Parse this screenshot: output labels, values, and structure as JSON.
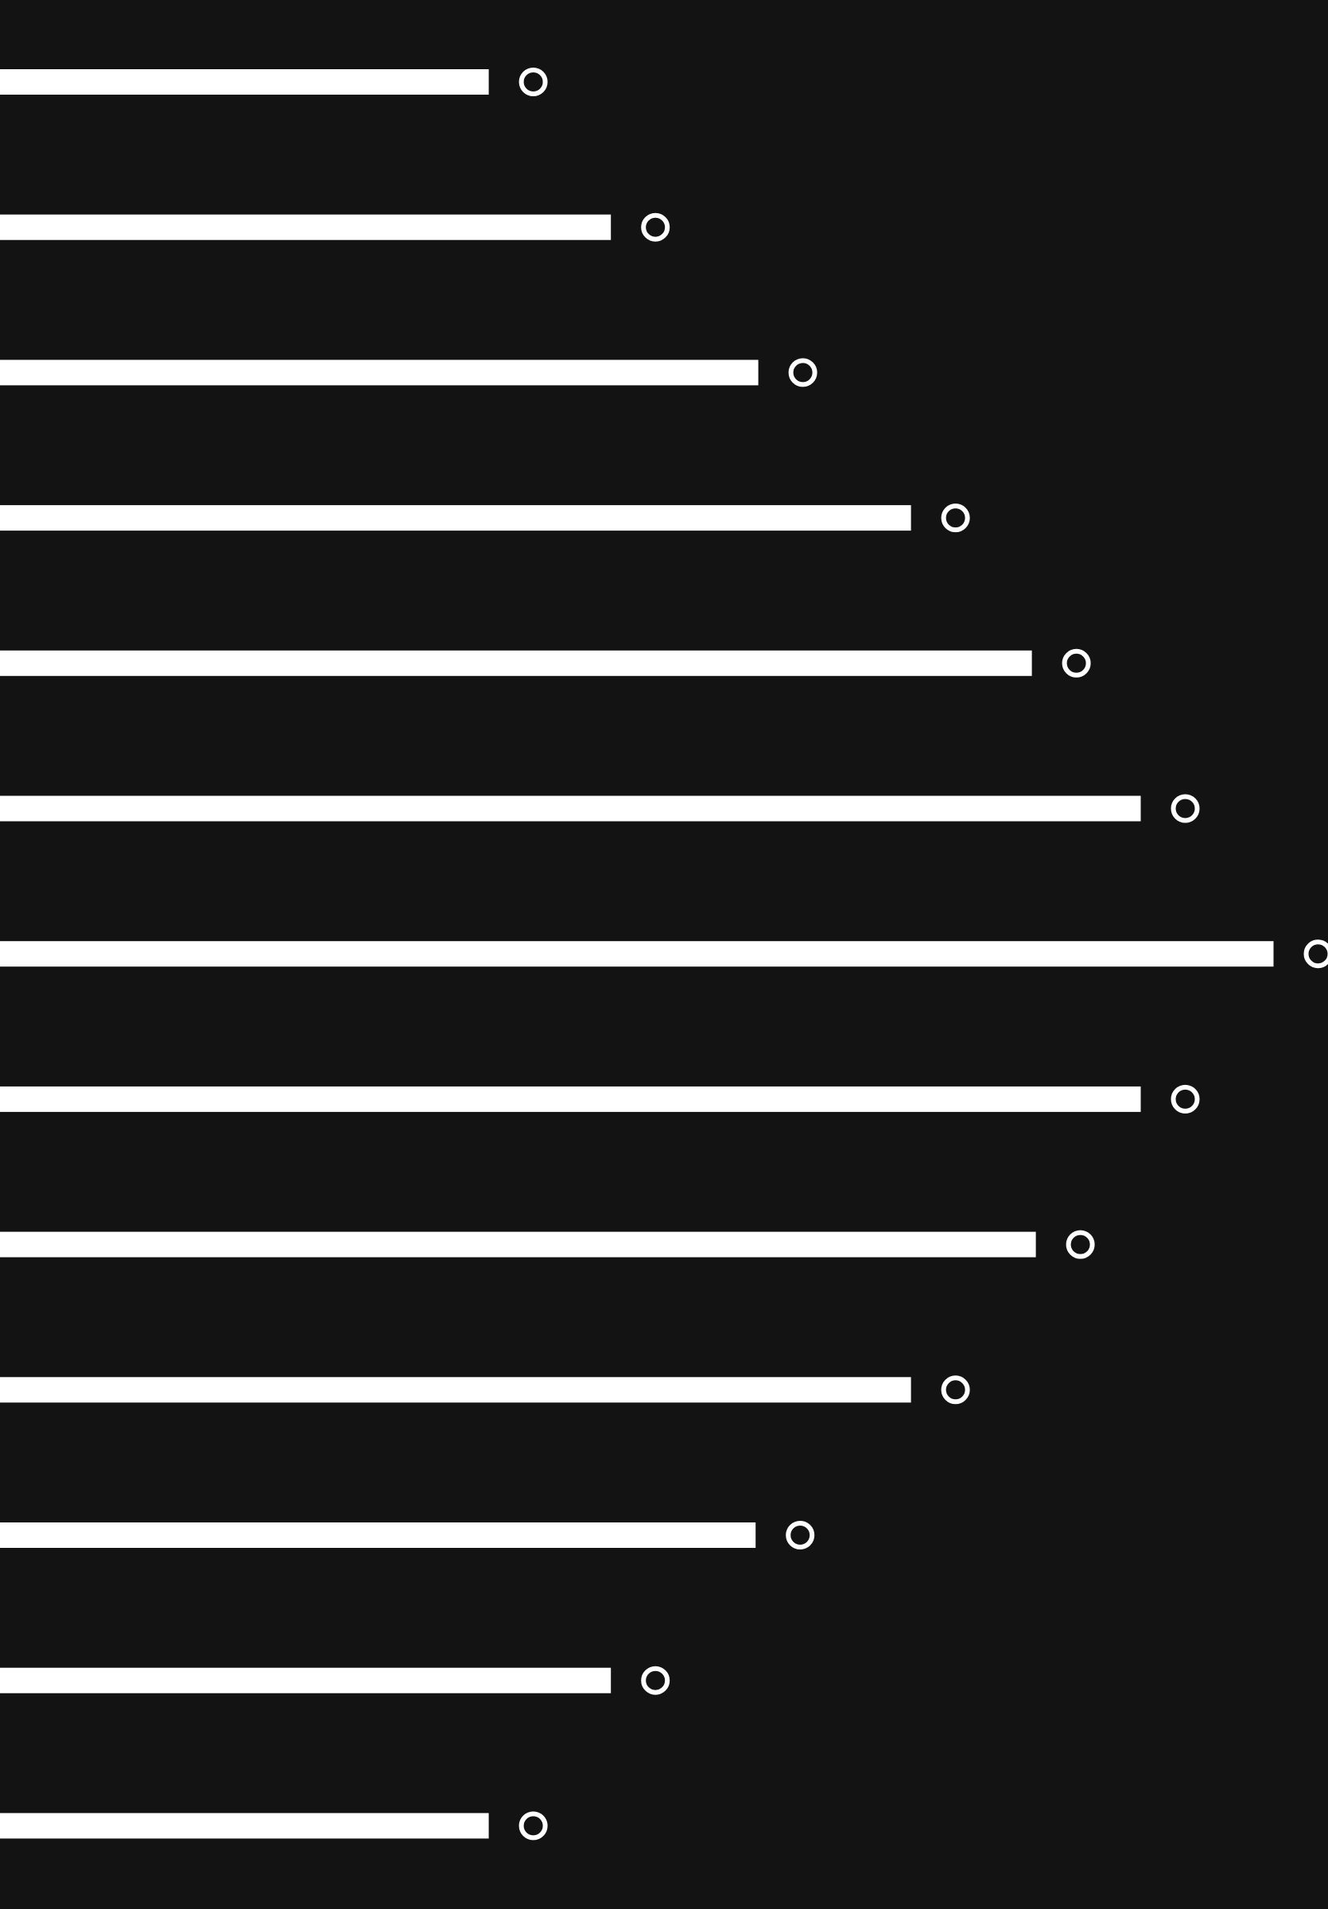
{
  "colors": {
    "background": "#141314",
    "bar": "#ffffff",
    "ring": "#ffffff"
  },
  "bars": [
    {
      "level": 0.368
    },
    {
      "level": 0.46
    },
    {
      "level": 0.571
    },
    {
      "level": 0.686
    },
    {
      "level": 0.777
    },
    {
      "level": 0.859
    },
    {
      "level": 0.959
    },
    {
      "level": 0.859
    },
    {
      "level": 0.78
    },
    {
      "level": 0.686
    },
    {
      "level": 0.569
    },
    {
      "level": 0.46
    },
    {
      "level": 0.368
    }
  ]
}
